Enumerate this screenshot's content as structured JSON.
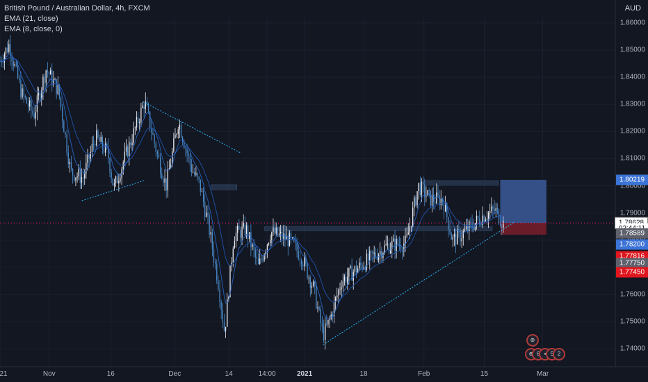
{
  "header": {
    "symbol_line": "British Pound / Australian Dollar, 4h, FXCM",
    "ema21": "EMA (21, close)",
    "ema8": "EMA (8, close, 0)",
    "currency": "AUD"
  },
  "price_labels": {
    "target": "1.80219",
    "current": "1.78628",
    "countdown": "02:44:11",
    "l1": "1.78589",
    "l2": "1.78200",
    "l3": "1.77816",
    "l4": "1.77750",
    "l5": "1.77450"
  },
  "events": {
    "badge1": "6",
    "badge2": "5",
    "badge3": "2"
  },
  "colors": {
    "background": "#131722",
    "bull": "#e8eaf0",
    "bear": "#4a8bc9",
    "ema": "#2962ff",
    "trendline": "#29b6f6",
    "profit_zone": "#3c5a99",
    "loss_zone": "#7a1f2a",
    "current_line": "#e91e63"
  },
  "chart_data": {
    "type": "candlestick",
    "symbol": "British Pound / Australian Dollar",
    "timeframe": "4h",
    "source": "FXCM",
    "currency": "AUD",
    "y_ticks": [
      "1.86000",
      "1.85000",
      "1.84000",
      "1.83000",
      "1.82000",
      "1.81000",
      "1.80000",
      "1.79000",
      "1.78000",
      "1.77000",
      "1.76000",
      "1.75000",
      "1.74000"
    ],
    "y_range": [
      1.738,
      1.862
    ],
    "x_ticks": [
      "21",
      "Nov",
      "16",
      "Dec",
      "14",
      "14:00",
      "2021",
      "18",
      "Feb",
      "15",
      "Mar"
    ],
    "x_tick_positions_frac": [
      0.0,
      0.08,
      0.18,
      0.284,
      0.372,
      0.434,
      0.495,
      0.591,
      0.689,
      0.787,
      0.882
    ],
    "path_points": [
      [
        0.0,
        1.846
      ],
      [
        0.015,
        1.852
      ],
      [
        0.035,
        1.834
      ],
      [
        0.055,
        1.826
      ],
      [
        0.075,
        1.843
      ],
      [
        0.095,
        1.835
      ],
      [
        0.115,
        1.805
      ],
      [
        0.135,
        1.803
      ],
      [
        0.155,
        1.818
      ],
      [
        0.175,
        1.812
      ],
      [
        0.185,
        1.799
      ],
      [
        0.215,
        1.818
      ],
      [
        0.235,
        1.831
      ],
      [
        0.255,
        1.812
      ],
      [
        0.27,
        1.8
      ],
      [
        0.29,
        1.824
      ],
      [
        0.31,
        1.807
      ],
      [
        0.325,
        1.8
      ],
      [
        0.34,
        1.784
      ],
      [
        0.355,
        1.764
      ],
      [
        0.365,
        1.746
      ],
      [
        0.38,
        1.782
      ],
      [
        0.4,
        1.784
      ],
      [
        0.42,
        1.77
      ],
      [
        0.44,
        1.783
      ],
      [
        0.47,
        1.78
      ],
      [
        0.49,
        1.774
      ],
      [
        0.51,
        1.762
      ],
      [
        0.525,
        1.745
      ],
      [
        0.535,
        1.75
      ],
      [
        0.555,
        1.765
      ],
      [
        0.6,
        1.773
      ],
      [
        0.63,
        1.778
      ],
      [
        0.66,
        1.779
      ],
      [
        0.68,
        1.8
      ],
      [
        0.7,
        1.795
      ],
      [
        0.72,
        1.795
      ],
      [
        0.735,
        1.78
      ],
      [
        0.75,
        1.782
      ],
      [
        0.77,
        1.786
      ],
      [
        0.785,
        1.789
      ],
      [
        0.805,
        1.791
      ],
      [
        0.818,
        1.786
      ]
    ],
    "current_price": 1.78628,
    "position_entry": 1.78628,
    "position_target": 1.80219,
    "position_stop": 1.782,
    "zones": [
      {
        "from": 1.7985,
        "to": 1.8004,
        "x_start_frac": 0.343,
        "x_end_frac": 0.385
      },
      {
        "from": 1.7835,
        "to": 1.785,
        "x_start_frac": 0.43,
        "x_end_frac": 0.8
      },
      {
        "from": 1.8003,
        "to": 1.8019,
        "x_start_frac": 0.69,
        "x_end_frac": 0.81
      }
    ],
    "trendlines": [
      {
        "from": [
          0.232,
          1.831
        ],
        "to": [
          0.392,
          1.812
        ]
      },
      {
        "from": [
          0.133,
          1.7945
        ],
        "to": [
          0.235,
          1.802
        ]
      },
      {
        "from": [
          0.525,
          1.7415
        ],
        "to": [
          0.835,
          1.7865
        ]
      }
    ]
  }
}
